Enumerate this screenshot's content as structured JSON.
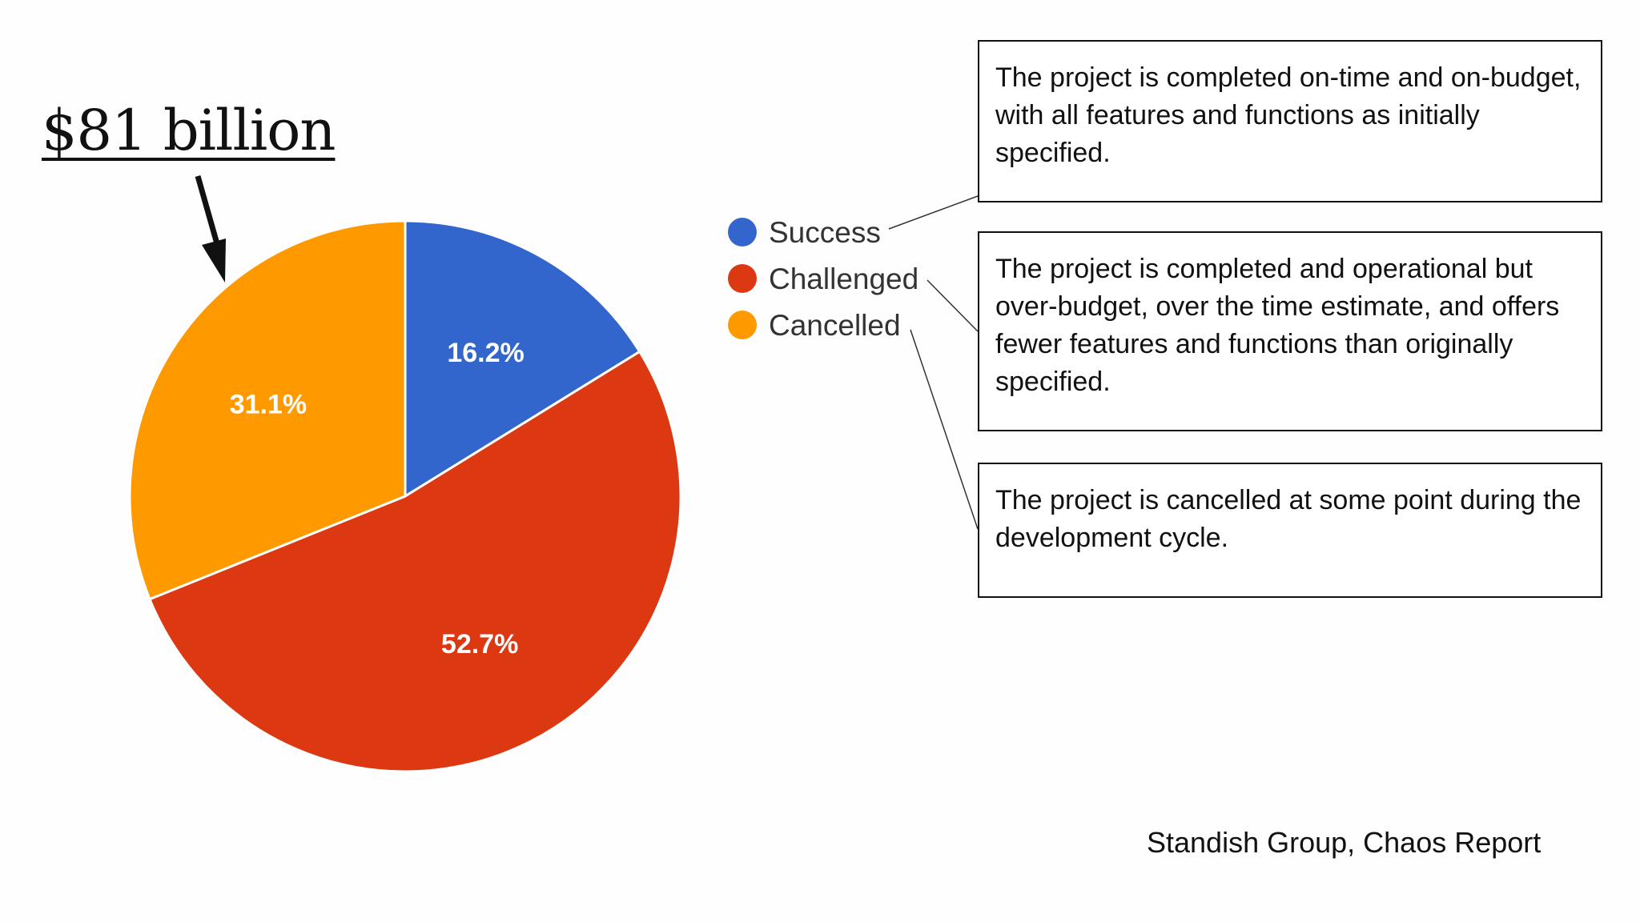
{
  "headline": "$81 billion",
  "source": "Standish Group, Chaos Report",
  "colors": {
    "success": "#3366cc",
    "challenged": "#dc3912",
    "cancelled": "#ff9900"
  },
  "chart_data": {
    "type": "pie",
    "title": "",
    "slices": [
      {
        "name": "Success",
        "value": 16.2,
        "label": "16.2%",
        "color": "#3366cc"
      },
      {
        "name": "Challenged",
        "value": 52.7,
        "label": "52.7%",
        "color": "#dc3912"
      },
      {
        "name": "Cancelled",
        "value": 31.1,
        "label": "31.1%",
        "color": "#ff9900"
      }
    ],
    "legend": [
      "Success",
      "Challenged",
      "Cancelled"
    ],
    "legend_position": "right"
  },
  "descriptions": {
    "success": "The project is completed on-time and on-budget, with all features and functions as initially specified.",
    "challenged": "The project is completed and operational but over-budget, over the time estimate, and offers fewer features and functions than originally specified.",
    "cancelled": "The project is cancelled at some point during the development cycle."
  }
}
